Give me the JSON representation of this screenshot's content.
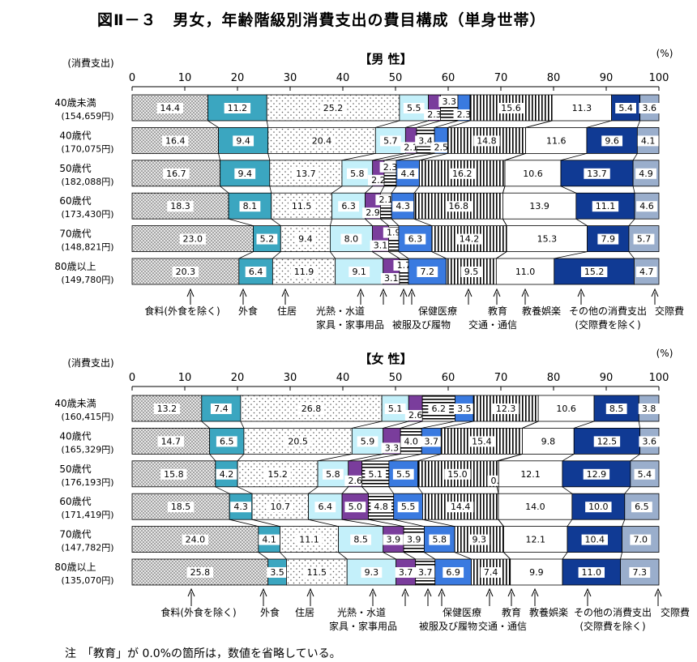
{
  "title": "図Ⅱ－３　男女，年齢階級別消費支出の費目構成（単身世帯）",
  "note": "注　「教育」が 0.0%の箇所は，数値を省略している。",
  "colors": {
    "食料": "#e4e4e4",
    "外食": "#3ba6c0",
    "住居": "#ffffff",
    "光熱": "#c4f0fa",
    "家具": "#7a3d9c",
    "被服": "#ffffff",
    "保健": "#3a7ae0",
    "交通": "#ffffff",
    "教育": "#ffffff",
    "教養": "#ffffff",
    "その他": "#103a94",
    "交際": "#9aaecc"
  },
  "patterns": [
    "dots-dense",
    "solid",
    "dots-sparse",
    "solid",
    "solid",
    "hstripe",
    "solid",
    "vstripe",
    "solid",
    "solid",
    "solid",
    "solid"
  ],
  "chart_data": [
    {
      "type": "bar",
      "orientation": "horizontal",
      "stacked": "100%",
      "title": "【男 性】",
      "unit": "(%)",
      "row_header": "(消費支出)",
      "xlim": [
        0,
        100
      ],
      "x_ticks": [
        "0",
        "10",
        "20",
        "30",
        "40",
        "50",
        "60",
        "70",
        "80",
        "90",
        "100"
      ],
      "categories": [
        {
          "age": "40歳未満",
          "spending": "(154,659円)"
        },
        {
          "age": "40歳代",
          "spending": "(170,075円)"
        },
        {
          "age": "50歳代",
          "spending": "(182,088円)"
        },
        {
          "age": "60歳代",
          "spending": "(173,430円)"
        },
        {
          "age": "70歳代",
          "spending": "(148,821円)"
        },
        {
          "age": "80歳以上",
          "spending": "(149,780円)"
        }
      ],
      "series": [
        {
          "key": "食料",
          "values": [
            14.4,
            16.4,
            16.7,
            18.3,
            23.0,
            20.3
          ]
        },
        {
          "key": "外食",
          "values": [
            11.2,
            9.4,
            9.4,
            8.1,
            5.2,
            6.4
          ]
        },
        {
          "key": "住居",
          "values": [
            25.2,
            20.4,
            13.7,
            11.5,
            9.4,
            11.9
          ]
        },
        {
          "key": "光熱",
          "values": [
            5.5,
            5.7,
            5.8,
            6.3,
            8.0,
            9.1
          ]
        },
        {
          "key": "家具",
          "values": [
            2.3,
            2.1,
            2.2,
            2.9,
            3.1,
            3.1
          ]
        },
        {
          "key": "被服",
          "values": [
            3.3,
            3.4,
            2.3,
            2.1,
            1.9,
            1.7
          ]
        },
        {
          "key": "保健",
          "values": [
            2.3,
            2.5,
            4.4,
            4.3,
            6.3,
            7.2
          ]
        },
        {
          "key": "交通",
          "values": [
            15.6,
            14.8,
            16.2,
            16.8,
            14.2,
            9.5
          ]
        },
        {
          "key": "教育",
          "values": [
            0.0,
            0.0,
            0.0,
            0.0,
            0.0,
            0.0
          ]
        },
        {
          "key": "教養",
          "values": [
            11.3,
            11.6,
            10.6,
            13.9,
            15.3,
            11.0
          ]
        },
        {
          "key": "その他",
          "values": [
            5.4,
            9.6,
            13.7,
            11.1,
            7.9,
            15.2
          ]
        },
        {
          "key": "交際",
          "values": [
            3.6,
            4.1,
            4.9,
            4.6,
            5.7,
            4.7
          ]
        }
      ],
      "labels": [
        [
          "14.4",
          "11.2",
          "25.2",
          "5.5",
          "2.3",
          "3.3",
          "2.3",
          "15.6",
          "",
          "11.3",
          "5.4",
          "3.6"
        ],
        [
          "16.4",
          "9.4",
          "20.4",
          "5.7",
          "2.1",
          "3.4",
          "2.5",
          "14.8",
          "",
          "11.6",
          "9.6",
          "4.1"
        ],
        [
          "16.7",
          "9.4",
          "13.7",
          "5.8",
          "2.2",
          "2.3",
          "4.4",
          "16.2",
          "",
          "10.6",
          "13.7",
          "4.9"
        ],
        [
          "18.3",
          "8.1",
          "11.5",
          "6.3",
          "2.9",
          "2.1",
          "4.3",
          "16.8",
          "",
          "13.9",
          "11.1",
          "4.6"
        ],
        [
          "23.0",
          "5.2",
          "9.4",
          "8.0",
          "3.1",
          "1.9",
          "6.3",
          "14.2",
          "",
          "15.3",
          "7.9",
          "5.7"
        ],
        [
          "20.3",
          "6.4",
          "11.9",
          "9.1",
          "3.1",
          "1.7",
          "7.2",
          "9.5",
          "",
          "11.0",
          "15.2",
          "4.7"
        ]
      ],
      "legend": [
        {
          "text": "食料(外食を除く)"
        },
        {
          "text": "外食"
        },
        {
          "text": "住居"
        },
        {
          "text": "光熱・水道"
        },
        {
          "text": "家具・家事用品"
        },
        {
          "text": "被服及び履物"
        },
        {
          "text": "保健医療"
        },
        {
          "text": "交通・通信"
        },
        {
          "text": "教育"
        },
        {
          "text": "教養娯楽"
        },
        {
          "text": "その他の消費支出"
        },
        {
          "text": "(交際費を除く)"
        },
        {
          "text": "交際費"
        }
      ]
    },
    {
      "type": "bar",
      "orientation": "horizontal",
      "stacked": "100%",
      "title": "【女 性】",
      "unit": "(%)",
      "row_header": "(消費支出)",
      "xlim": [
        0,
        100
      ],
      "x_ticks": [
        "0",
        "10",
        "20",
        "30",
        "40",
        "50",
        "60",
        "70",
        "80",
        "90",
        "100"
      ],
      "categories": [
        {
          "age": "40歳未満",
          "spending": "(160,415円)"
        },
        {
          "age": "40歳代",
          "spending": "(165,329円)"
        },
        {
          "age": "50歳代",
          "spending": "(176,193円)"
        },
        {
          "age": "60歳代",
          "spending": "(171,419円)"
        },
        {
          "age": "70歳代",
          "spending": "(147,782円)"
        },
        {
          "age": "80歳以上",
          "spending": "(135,070円)"
        }
      ],
      "series": [
        {
          "key": "食料",
          "values": [
            13.2,
            14.7,
            15.8,
            18.5,
            24.0,
            25.8
          ]
        },
        {
          "key": "外食",
          "values": [
            7.4,
            6.5,
            4.2,
            4.3,
            4.1,
            3.5
          ]
        },
        {
          "key": "住居",
          "values": [
            26.8,
            20.5,
            15.2,
            10.7,
            11.1,
            11.5
          ]
        },
        {
          "key": "光熱",
          "values": [
            5.1,
            5.9,
            5.8,
            6.4,
            8.5,
            9.3
          ]
        },
        {
          "key": "家具",
          "values": [
            2.6,
            3.3,
            2.6,
            5.0,
            3.9,
            3.7
          ]
        },
        {
          "key": "被服",
          "values": [
            6.2,
            4.0,
            5.1,
            4.8,
            3.9,
            3.7
          ]
        },
        {
          "key": "保健",
          "values": [
            3.5,
            3.7,
            5.5,
            5.5,
            5.8,
            6.9
          ]
        },
        {
          "key": "交通",
          "values": [
            12.3,
            15.4,
            15.0,
            14.4,
            9.3,
            7.4
          ]
        },
        {
          "key": "教育",
          "values": [
            0.0,
            0.0,
            0.3,
            0.0,
            0.0,
            0.0
          ]
        },
        {
          "key": "教養",
          "values": [
            10.6,
            9.8,
            12.1,
            14.0,
            12.1,
            9.9
          ]
        },
        {
          "key": "その他",
          "values": [
            8.5,
            12.5,
            12.9,
            10.0,
            10.4,
            11.0
          ]
        },
        {
          "key": "交際",
          "values": [
            3.8,
            3.6,
            5.4,
            6.5,
            7.0,
            7.3
          ]
        }
      ],
      "labels": [
        [
          "13.2",
          "7.4",
          "26.8",
          "5.1",
          "2.6",
          "6.2",
          "3.5",
          "12.3",
          "",
          "10.6",
          "8.5",
          "3.8"
        ],
        [
          "14.7",
          "6.5",
          "20.5",
          "5.9",
          "3.3",
          "4.0",
          "3.7",
          "15.4",
          "",
          "9.8",
          "12.5",
          "3.6"
        ],
        [
          "15.8",
          "4.2",
          "15.2",
          "5.8",
          "2.6",
          "5.1",
          "5.5",
          "15.0",
          "0.3",
          "12.1",
          "12.9",
          "5.4"
        ],
        [
          "18.5",
          "4.3",
          "10.7",
          "6.4",
          "5.0",
          "4.8",
          "5.5",
          "14.4",
          "",
          "14.0",
          "10.0",
          "6.5"
        ],
        [
          "24.0",
          "4.1",
          "11.1",
          "8.5",
          "3.9",
          "3.9",
          "5.8",
          "9.3",
          "",
          "12.1",
          "10.4",
          "7.0"
        ],
        [
          "25.8",
          "3.5",
          "11.5",
          "9.3",
          "3.7",
          "3.7",
          "6.9",
          "7.4",
          "",
          "9.9",
          "11.0",
          "7.3"
        ]
      ],
      "legend": [
        {
          "text": "食料(外食を除く)"
        },
        {
          "text": "外食"
        },
        {
          "text": "住居"
        },
        {
          "text": "光熱・水道"
        },
        {
          "text": "家具・家事用品"
        },
        {
          "text": "被服及び履物"
        },
        {
          "text": "保健医療"
        },
        {
          "text": "交通・通信"
        },
        {
          "text": "教育"
        },
        {
          "text": "教養娯楽"
        },
        {
          "text": "その他の消費支出"
        },
        {
          "text": "(交際費を除く)"
        },
        {
          "text": "交際費"
        }
      ]
    }
  ]
}
